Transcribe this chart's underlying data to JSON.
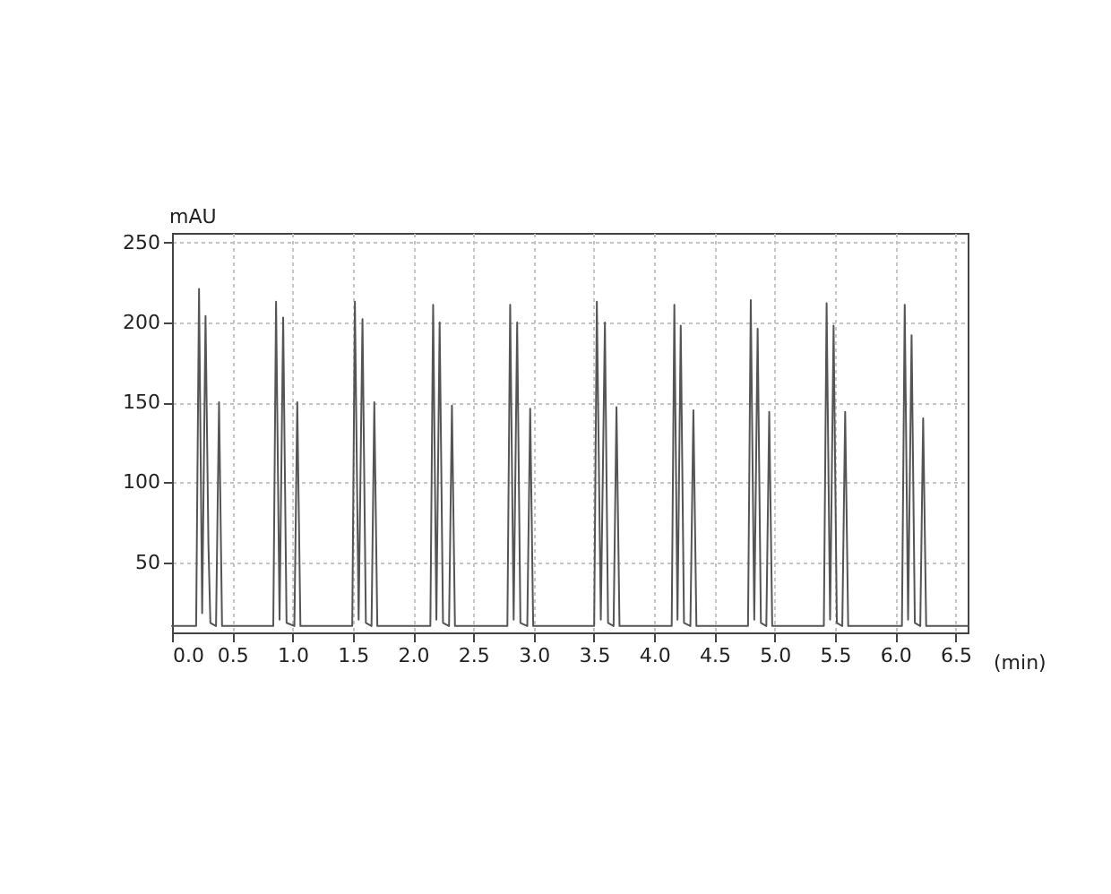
{
  "chart_data": {
    "type": "line",
    "xlabel": "(min)",
    "ylabel": "mAU",
    "xlim": [
      0,
      6.6
    ],
    "ylim": [
      6,
      256
    ],
    "xticks": [
      {
        "value": 0,
        "label": "0.0"
      },
      {
        "value": 0.5,
        "label": "0.5"
      },
      {
        "value": 1,
        "label": "1.0"
      },
      {
        "value": 1.5,
        "label": "1.5"
      },
      {
        "value": 2,
        "label": "2.0"
      },
      {
        "value": 2.5,
        "label": "2.5"
      },
      {
        "value": 3,
        "label": "3.0"
      },
      {
        "value": 3.5,
        "label": "3.5"
      },
      {
        "value": 4,
        "label": "4.0"
      },
      {
        "value": 4.5,
        "label": "4.5"
      },
      {
        "value": 5,
        "label": "5.0"
      },
      {
        "value": 5.5,
        "label": "5.5"
      },
      {
        "value": 6,
        "label": "6.0"
      },
      {
        "value": 6.5,
        "label": "6.5"
      }
    ],
    "yticks": [
      50,
      100,
      150,
      200,
      250
    ],
    "grid": true,
    "marker": "none",
    "line_style": "solid",
    "series": [
      {
        "color": "#555555",
        "x": [
          0,
          0.2,
          0.224,
          0.25,
          0.278,
          0.302,
          0.318,
          0.365,
          0.39,
          0.415,
          0.84,
          0.863,
          0.892,
          0.922,
          0.95,
          1.015,
          1.039,
          1.065,
          1.495,
          1.517,
          1.548,
          1.58,
          1.608,
          1.655,
          1.678,
          1.703,
          2.143,
          2.166,
          2.193,
          2.22,
          2.248,
          2.298,
          2.322,
          2.347,
          2.782,
          2.805,
          2.834,
          2.863,
          2.89,
          2.947,
          2.971,
          2.996,
          3.502,
          3.524,
          3.557,
          3.591,
          3.617,
          3.663,
          3.687,
          3.712,
          4.145,
          4.167,
          4.193,
          4.22,
          4.247,
          4.3,
          4.325,
          4.35,
          4.778,
          4.801,
          4.83,
          4.858,
          4.885,
          4.93,
          4.954,
          4.979,
          5.407,
          5.43,
          5.459,
          5.488,
          5.515,
          5.56,
          5.584,
          5.609,
          6.055,
          6.078,
          6.106,
          6.135,
          6.162,
          6.207,
          6.231,
          6.256,
          6.6
        ],
        "values": [
          10,
          10,
          221,
          18,
          204,
          61,
          12,
          10,
          150,
          10,
          10,
          213,
          14,
          203,
          12,
          10,
          150,
          10,
          10,
          213,
          14,
          202,
          12,
          10,
          150,
          10,
          10,
          211,
          14,
          200,
          12,
          10,
          148,
          10,
          10,
          211,
          14,
          200,
          12,
          10,
          146,
          10,
          10,
          213,
          14,
          200,
          12,
          10,
          147,
          10,
          10,
          211,
          14,
          198,
          12,
          10,
          145,
          10,
          10,
          214,
          14,
          196,
          12,
          10,
          144,
          10,
          10,
          212,
          14,
          198,
          12,
          10,
          144,
          10,
          10,
          211,
          14,
          192,
          12,
          10,
          140,
          10,
          10
        ]
      }
    ]
  }
}
